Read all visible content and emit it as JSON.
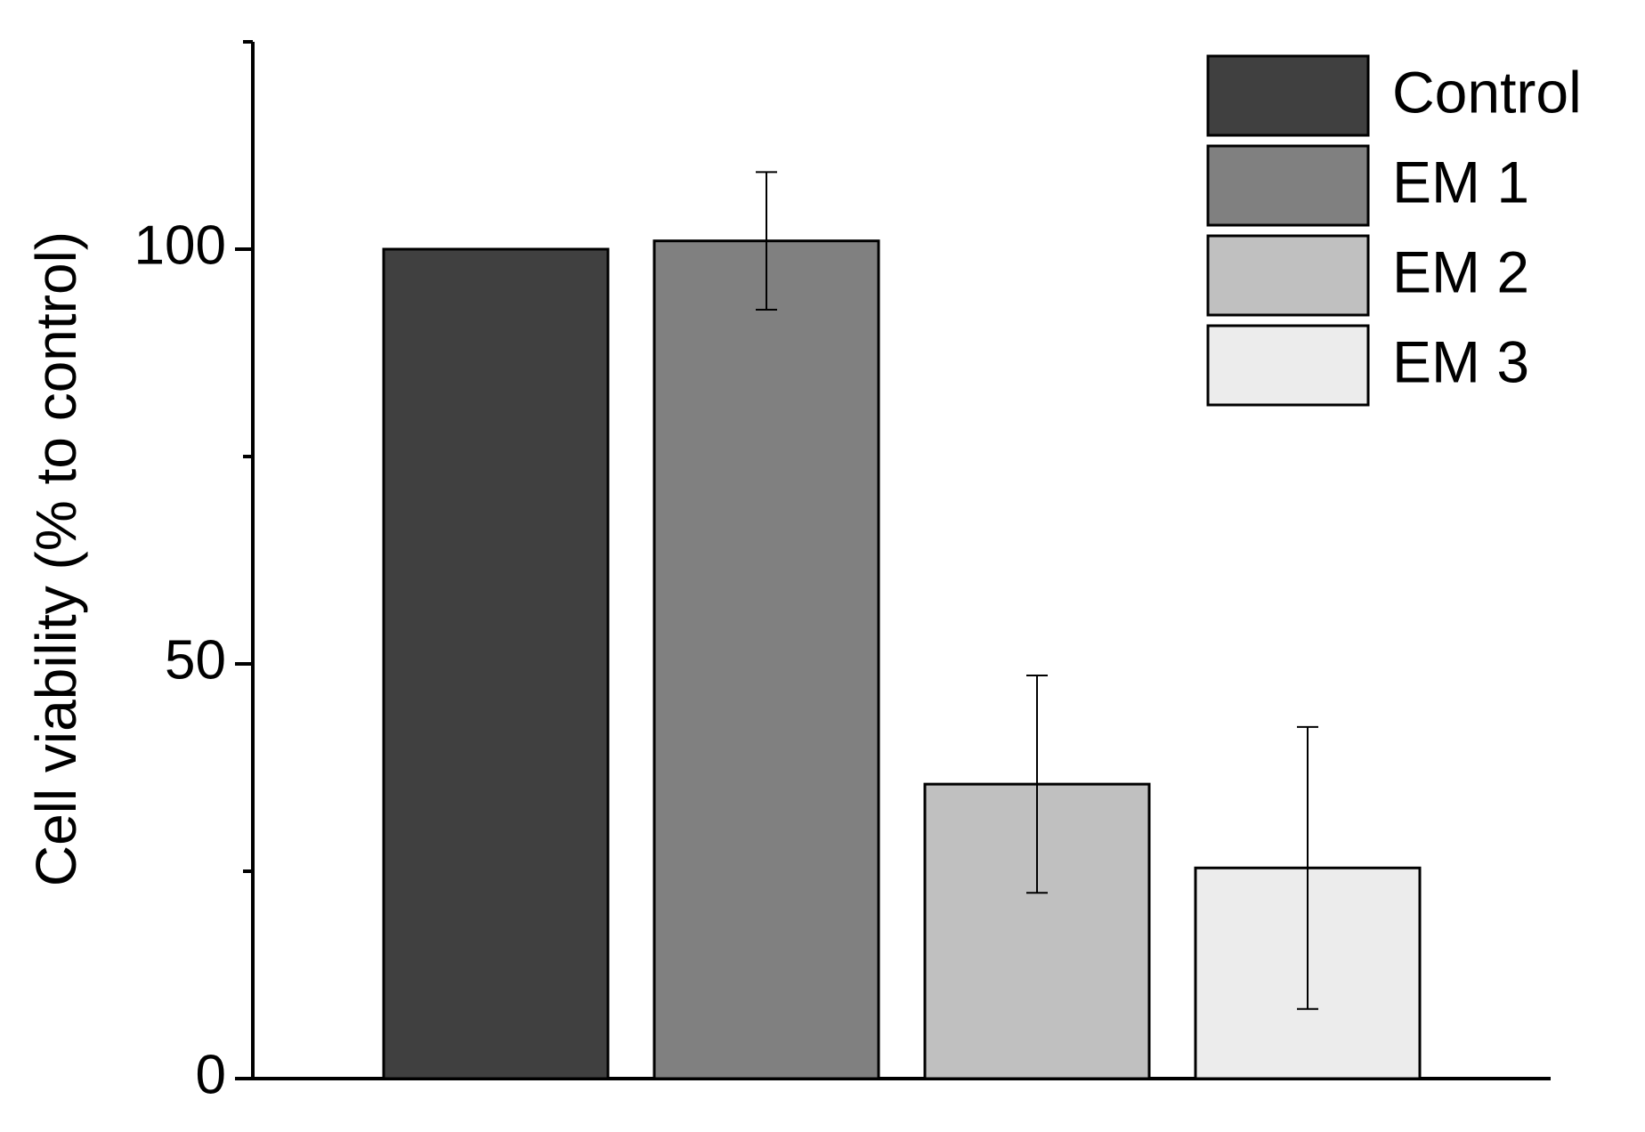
{
  "chart_data": {
    "type": "bar",
    "y_label": "Cell viability (% to control)",
    "series": [
      {
        "name": "Control",
        "color": "#404040",
        "values": [
          100
        ]
      },
      {
        "name": "EM 1",
        "color": "#808080",
        "values": [
          101
        ],
        "errors": [
          8.3
        ]
      },
      {
        "name": "EM 2",
        "color": "#c0c0c0",
        "values": [
          35.5
        ],
        "errors": [
          13.1
        ]
      },
      {
        "name": "EM 3",
        "color": "#ececec",
        "values": [
          25.4
        ],
        "errors": [
          17
        ]
      }
    ],
    "ylim": [
      0,
      125
    ],
    "yticks": [
      0,
      50,
      100
    ],
    "yminorticks": [
      25,
      75,
      125
    ],
    "legend": "upper right"
  }
}
